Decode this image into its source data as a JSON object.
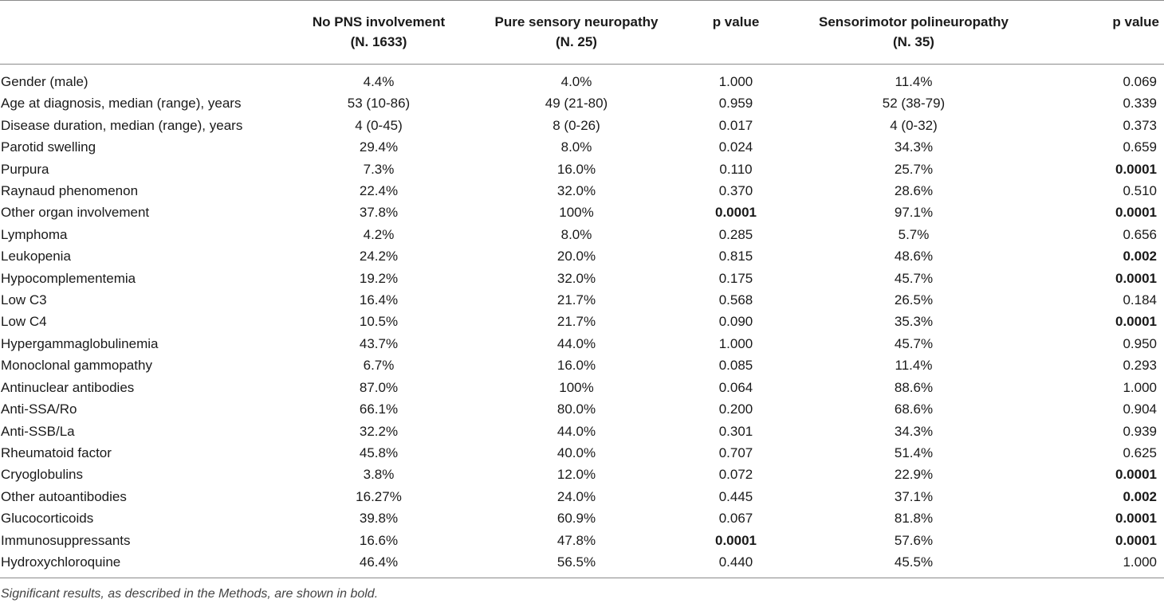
{
  "headers": {
    "col1": [
      "No PNS involvement",
      "(N. 1633)"
    ],
    "col2": [
      "Pure sensory neuropathy",
      "(N. 25)"
    ],
    "col3": [
      "p value"
    ],
    "col4": [
      "Sensorimotor polineuropathy",
      "(N. 35)"
    ],
    "col5": [
      "p value"
    ]
  },
  "rows": [
    {
      "label": "Gender (male)",
      "v": [
        "4.4%",
        "4.0%",
        "1.000",
        "11.4%",
        "0.069"
      ],
      "bold": []
    },
    {
      "label": "Age at diagnosis, median (range), years",
      "v": [
        "53 (10-86)",
        "49 (21-80)",
        "0.959",
        "52 (38-79)",
        "0.339"
      ],
      "bold": []
    },
    {
      "label": "Disease duration, median (range), years",
      "v": [
        "4 (0-45)",
        "8 (0-26)",
        "0.017",
        "4 (0-32)",
        "0.373"
      ],
      "bold": []
    },
    {
      "label": "Parotid swelling",
      "v": [
        "29.4%",
        "8.0%",
        "0.024",
        "34.3%",
        "0.659"
      ],
      "bold": []
    },
    {
      "label": "Purpura",
      "v": [
        "7.3%",
        "16.0%",
        "0.110",
        "25.7%",
        "0.0001"
      ],
      "bold": [
        4
      ]
    },
    {
      "label": "Raynaud phenomenon",
      "v": [
        "22.4%",
        "32.0%",
        "0.370",
        "28.6%",
        "0.510"
      ],
      "bold": []
    },
    {
      "label": "Other organ involvement",
      "v": [
        "37.8%",
        "100%",
        "0.0001",
        "97.1%",
        "0.0001"
      ],
      "bold": [
        2,
        4
      ]
    },
    {
      "label": "Lymphoma",
      "v": [
        "4.2%",
        "8.0%",
        "0.285",
        "5.7%",
        "0.656"
      ],
      "bold": []
    },
    {
      "label": "Leukopenia",
      "v": [
        "24.2%",
        "20.0%",
        "0.815",
        "48.6%",
        "0.002"
      ],
      "bold": [
        4
      ]
    },
    {
      "label": "Hypocomplementemia",
      "v": [
        "19.2%",
        "32.0%",
        "0.175",
        "45.7%",
        "0.0001"
      ],
      "bold": [
        4
      ]
    },
    {
      "label": "Low C3",
      "v": [
        "16.4%",
        "21.7%",
        "0.568",
        "26.5%",
        "0.184"
      ],
      "bold": []
    },
    {
      "label": "Low C4",
      "v": [
        "10.5%",
        "21.7%",
        "0.090",
        "35.3%",
        "0.0001"
      ],
      "bold": [
        4
      ]
    },
    {
      "label": "Hypergammaglobulinemia",
      "v": [
        "43.7%",
        "44.0%",
        "1.000",
        "45.7%",
        "0.950"
      ],
      "bold": []
    },
    {
      "label": "Monoclonal gammopathy",
      "v": [
        "6.7%",
        "16.0%",
        "0.085",
        "11.4%",
        "0.293"
      ],
      "bold": []
    },
    {
      "label": "Antinuclear antibodies",
      "v": [
        "87.0%",
        "100%",
        "0.064",
        "88.6%",
        "1.000"
      ],
      "bold": []
    },
    {
      "label": "Anti-SSA/Ro",
      "v": [
        "66.1%",
        "80.0%",
        "0.200",
        "68.6%",
        "0.904"
      ],
      "bold": []
    },
    {
      "label": "Anti-SSB/La",
      "v": [
        "32.2%",
        "44.0%",
        "0.301",
        "34.3%",
        "0.939"
      ],
      "bold": []
    },
    {
      "label": "Rheumatoid factor",
      "v": [
        "45.8%",
        "40.0%",
        "0.707",
        "51.4%",
        "0.625"
      ],
      "bold": []
    },
    {
      "label": "Cryoglobulins",
      "v": [
        "3.8%",
        "12.0%",
        "0.072",
        "22.9%",
        "0.0001"
      ],
      "bold": [
        4
      ]
    },
    {
      "label": "Other autoantibodies",
      "v": [
        "16.27%",
        "24.0%",
        "0.445",
        "37.1%",
        "0.002"
      ],
      "bold": [
        4
      ]
    },
    {
      "label": "Glucocorticoids",
      "v": [
        "39.8%",
        "60.9%",
        "0.067",
        "81.8%",
        "0.0001"
      ],
      "bold": [
        4
      ]
    },
    {
      "label": "Immunosuppressants",
      "v": [
        "16.6%",
        "47.8%",
        "0.0001",
        "57.6%",
        "0.0001"
      ],
      "bold": [
        2,
        4
      ]
    },
    {
      "label": "Hydroxychloroquine",
      "v": [
        "46.4%",
        "56.5%",
        "0.440",
        "45.5%",
        "1.000"
      ],
      "bold": []
    }
  ],
  "footnote": "Significant results, as described in the Methods, are shown in bold."
}
